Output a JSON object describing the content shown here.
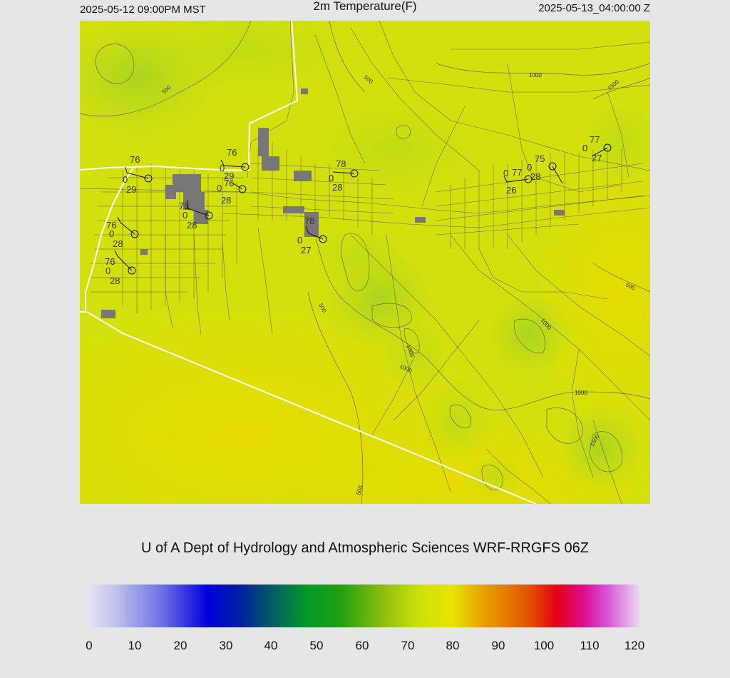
{
  "header": {
    "valid_local": "2025-05-12 09:00PM MST",
    "field_title": "2m Temperature(F)",
    "valid_utc": "2025-05-13_04:00:00 Z"
  },
  "credit": "U of A Dept of Hydrology and Atmospheric Sciences WRF-RRGFS 06Z",
  "colorbar": {
    "ticks": [
      "0",
      "10",
      "20",
      "30",
      "40",
      "50",
      "60",
      "70",
      "80",
      "90",
      "100",
      "110",
      "120"
    ],
    "units": "F",
    "range": [
      0,
      120
    ]
  },
  "contour_labels": [
    "500",
    "500",
    "500",
    "500",
    "500",
    "1000",
    "1000",
    "1000",
    "1000",
    "1000",
    "1500",
    "1500"
  ],
  "stations": [
    {
      "temp": "76",
      "wind": "0",
      "dew": "29"
    },
    {
      "temp": "76",
      "wind": "0",
      "dew": "29"
    },
    {
      "temp": "76",
      "wind": "0",
      "dew": "28"
    },
    {
      "temp": "78",
      "wind": "0",
      "dew": "28"
    },
    {
      "temp": "78",
      "wind": "0",
      "dew": "28"
    },
    {
      "temp": "76",
      "wind": "0",
      "dew": "28"
    },
    {
      "temp": "76",
      "wind": "0",
      "dew": "28"
    },
    {
      "temp": "78",
      "wind": "0",
      "dew": "27"
    },
    {
      "temp": "77",
      "wind": "0",
      "dew": "26"
    },
    {
      "temp": "75",
      "wind": "0",
      "dew": "28"
    },
    {
      "temp": "77",
      "wind": "0",
      "dew": "27"
    }
  ],
  "colors": {
    "map_base": "#d6e00a",
    "map_warm": "#e6e200",
    "map_cool": "#b8d81a",
    "roads": "#666666",
    "border": "#ffffff"
  }
}
